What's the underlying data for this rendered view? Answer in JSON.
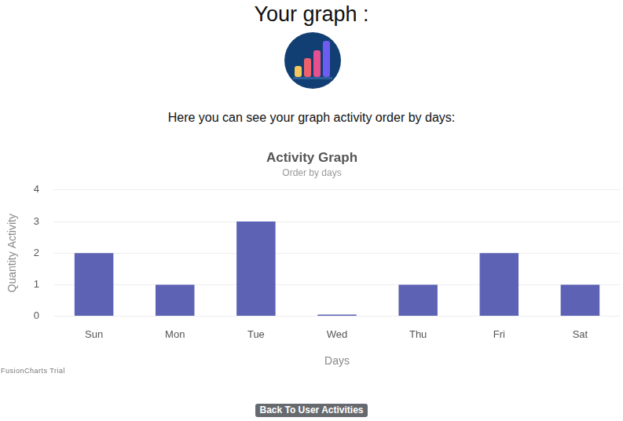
{
  "heading": "Your graph :",
  "intro": "Here you can see your graph activity order by days:",
  "chart_data": {
    "type": "bar",
    "title": "Activity Graph",
    "subtitle": "Order by days",
    "x_label": "Days",
    "y_label": "Quantity Activity",
    "categories": [
      "Sun",
      "Mon",
      "Tue",
      "Wed",
      "Thu",
      "Fri",
      "Sat"
    ],
    "values": [
      2,
      1,
      3,
      0,
      1,
      2,
      1
    ],
    "color": "#5d62b5",
    "ylim": [
      0,
      4
    ],
    "yticks": [
      0,
      1,
      2,
      3,
      4
    ],
    "grid": true
  },
  "watermark": "FusionCharts Trial",
  "button": "Back To User Activities"
}
